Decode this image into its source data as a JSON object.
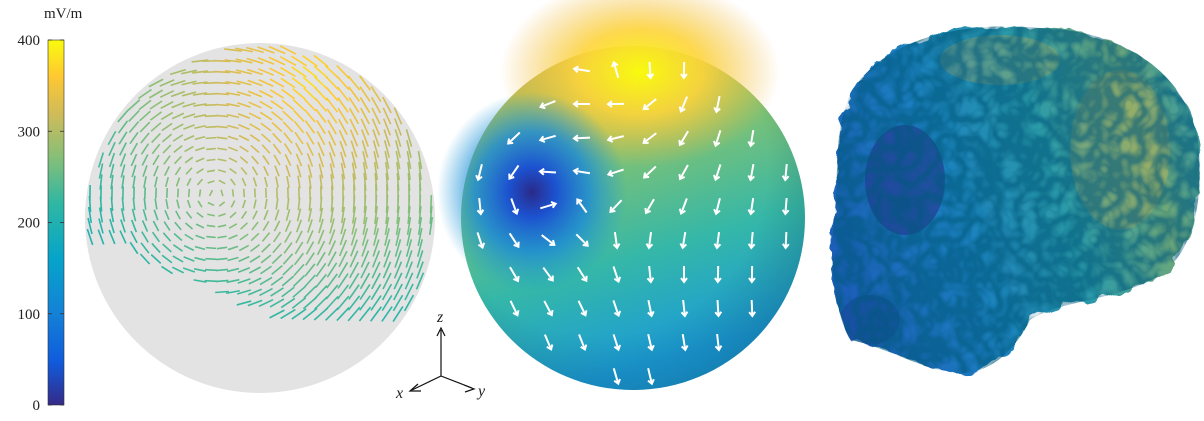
{
  "colorbar": {
    "unit": "mV/m",
    "lim": [
      0,
      400
    ],
    "ticks": [
      0,
      100,
      200,
      300,
      400
    ]
  },
  "axes": {
    "z": "z",
    "x": "x",
    "y": "y"
  }
}
